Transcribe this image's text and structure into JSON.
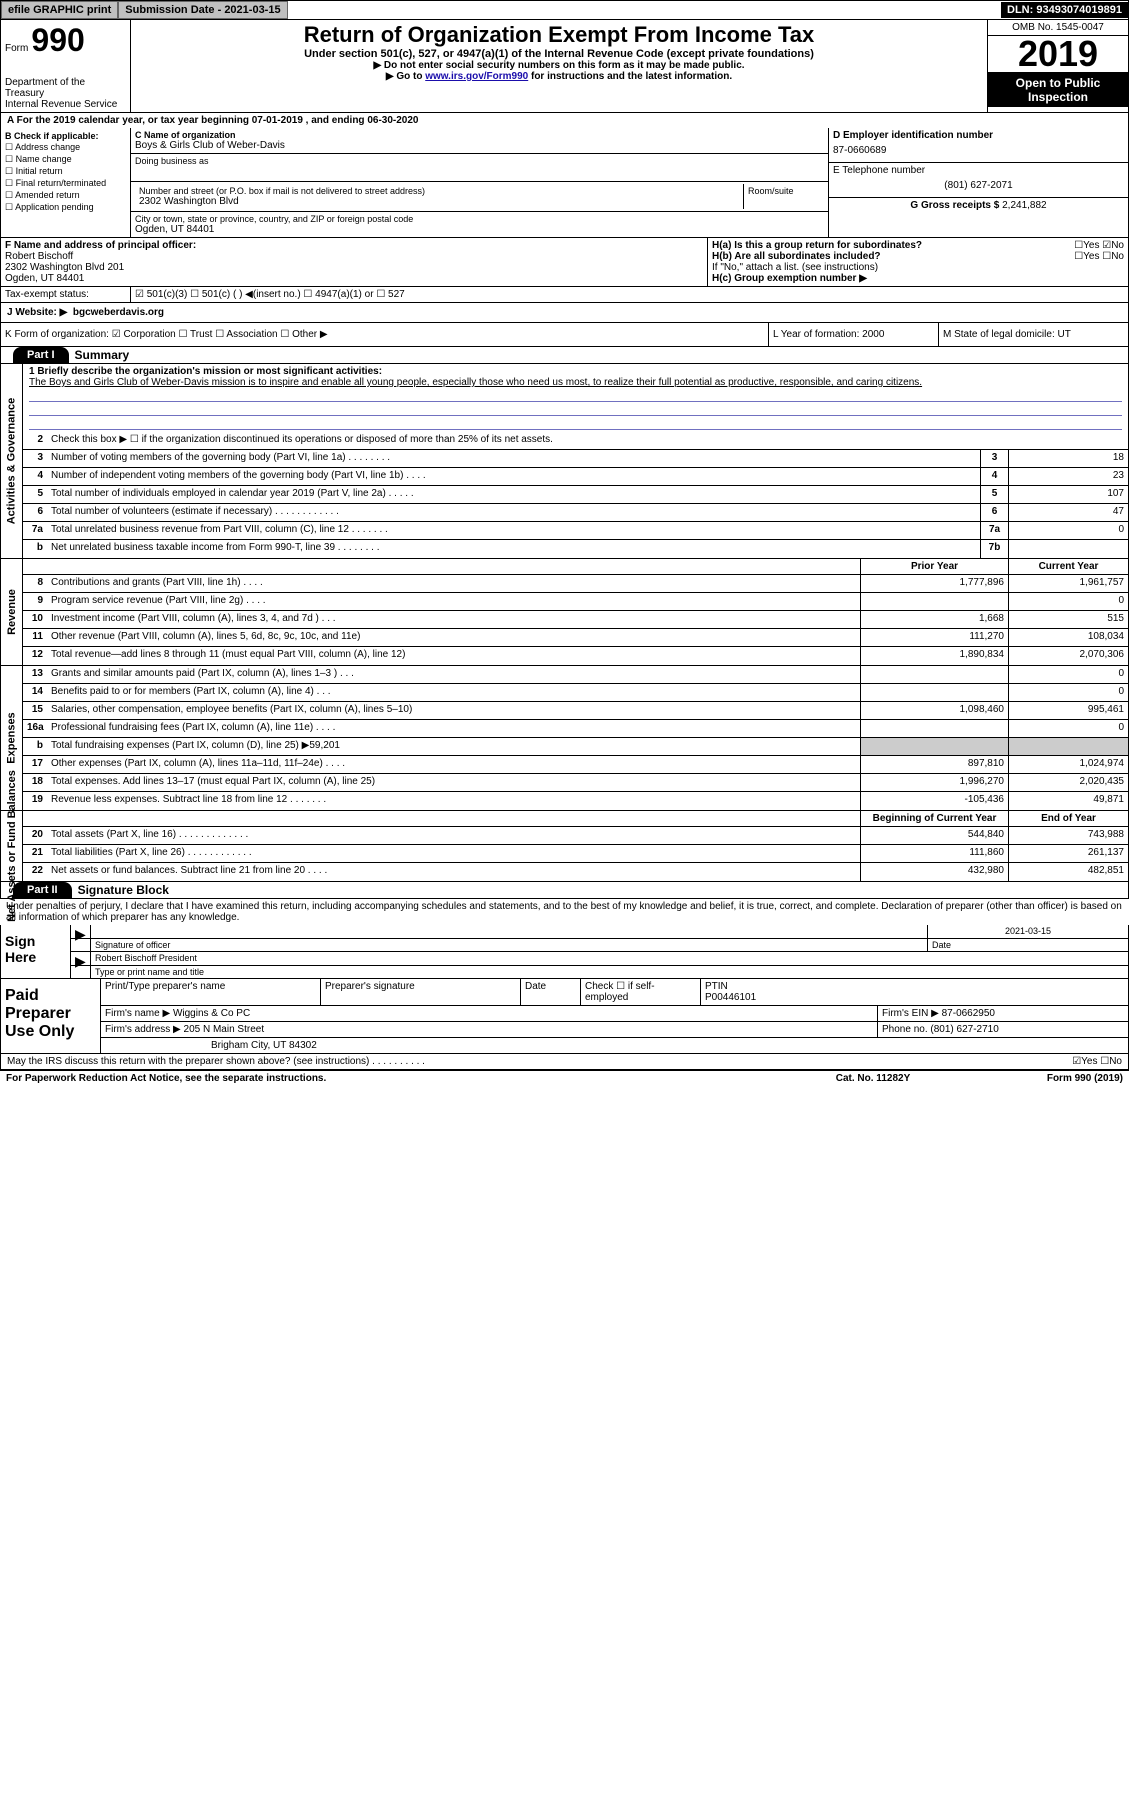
{
  "topbar": {
    "efile": "efile GRAPHIC print",
    "subdate_label": "Submission Date - 2021-03-15",
    "dln": "DLN: 93493074019891"
  },
  "header": {
    "form_word": "Form",
    "form_number": "990",
    "title": "Return of Organization Exempt From Income Tax",
    "subtitle": "Under section 501(c), 527, or 4947(a)(1) of the Internal Revenue Code (except private foundations)",
    "note1": "▶ Do not enter social security numbers on this form as it may be made public.",
    "note2_pre": "▶ Go to ",
    "note2_link": "www.irs.gov/Form990",
    "note2_post": " for instructions and the latest information.",
    "dept": "Department of the Treasury\nInternal Revenue Service",
    "omb": "OMB No. 1545-0047",
    "year": "2019",
    "inspect": "Open to Public Inspection"
  },
  "lineA": "A For the 2019 calendar year, or tax year beginning 07-01-2019   , and ending 06-30-2020",
  "sectionB": {
    "label": "B Check if applicable:",
    "opts": [
      "☐ Address change",
      "☐ Name change",
      "☐ Initial return",
      "☐ Final return/terminated",
      "☐ Amended return",
      "☐ Application pending"
    ]
  },
  "sectionC": {
    "name_label": "C Name of organization",
    "name": "Boys & Girls Club of Weber-Davis",
    "dba_label": "Doing business as",
    "street_label": "Number and street (or P.O. box if mail is not delivered to street address)",
    "room_label": "Room/suite",
    "street": "2302 Washington Blvd",
    "city_label": "City or town, state or province, country, and ZIP or foreign postal code",
    "city": "Ogden, UT  84401"
  },
  "sectionD": {
    "label": "D Employer identification number",
    "ein": "87-0660689",
    "tel_label": "E Telephone number",
    "tel": "(801) 627-2071",
    "gross_label": "G Gross receipts $ ",
    "gross": "2,241,882"
  },
  "sectionF": {
    "label": "F  Name and address of principal officer:",
    "name": "Robert Bischoff",
    "addr1": "2302 Washington Blvd 201",
    "addr2": "Ogden, UT  84401"
  },
  "sectionH": {
    "a": "H(a)  Is this a group return for subordinates?",
    "a_ans": "☐Yes ☑No",
    "b": "H(b)  Are all subordinates included?",
    "b_ans": "☐Yes ☐No",
    "b_note": "If \"No,\" attach a list. (see instructions)",
    "c": "H(c)  Group exemption number ▶"
  },
  "taxStatus": {
    "label": "Tax-exempt status:",
    "opts": "☑ 501(c)(3)   ☐ 501(c) (  ) ◀(insert no.)   ☐ 4947(a)(1) or  ☐ 527"
  },
  "website": {
    "label": "J    Website: ▶",
    "value": "bgcweberdavis.org"
  },
  "klm": {
    "k": "K Form of organization:  ☑ Corporation  ☐ Trust  ☐ Association  ☐ Other ▶",
    "l": "L Year of formation: 2000",
    "m": "M State of legal domicile: UT"
  },
  "part1": {
    "header": "Part I",
    "title": "Summary"
  },
  "activities": {
    "line1_label": "1  Briefly describe the organization's mission or most significant activities:",
    "line1_text": "The Boys and Girls Club of Weber-Davis mission is to inspire and enable all young people, especially those who need us most, to realize their full potential as productive, responsible, and caring citizens.",
    "line2": "Check this box ▶ ☐ if the organization discontinued its operations or disposed of more than 25% of its net assets.",
    "rows": [
      {
        "n": "3",
        "t": "Number of voting members of the governing body (Part VI, line 1a)  .   .   .   .   .   .   .   .",
        "b": "3",
        "v": "18"
      },
      {
        "n": "4",
        "t": "Number of independent voting members of the governing body (Part VI, line 1b)  .   .   .   .",
        "b": "4",
        "v": "23"
      },
      {
        "n": "5",
        "t": "Total number of individuals employed in calendar year 2019 (Part V, line 2a)  .   .   .   .   .",
        "b": "5",
        "v": "107"
      },
      {
        "n": "6",
        "t": "Total number of volunteers (estimate if necessary)   .   .   .   .   .   .   .   .   .   .   .   .",
        "b": "6",
        "v": "47"
      },
      {
        "n": "7a",
        "t": "Total unrelated business revenue from Part VIII, column (C), line 12  .   .   .   .   .   .   .",
        "b": "7a",
        "v": "0"
      },
      {
        "n": "b",
        "t": "Net unrelated business taxable income from Form 990-T, line 39   .   .   .   .   .   .   .   .",
        "b": "7b",
        "v": ""
      }
    ]
  },
  "revenue": {
    "header_py": "Prior Year",
    "header_cy": "Current Year",
    "rows": [
      {
        "n": "8",
        "t": "Contributions and grants (Part VIII, line 1h)   .   .   .   .",
        "py": "1,777,896",
        "cy": "1,961,757"
      },
      {
        "n": "9",
        "t": "Program service revenue (Part VIII, line 2g)   .   .   .   .",
        "py": "",
        "cy": "0"
      },
      {
        "n": "10",
        "t": "Investment income (Part VIII, column (A), lines 3, 4, and 7d )   .   .   .",
        "py": "1,668",
        "cy": "515"
      },
      {
        "n": "11",
        "t": "Other revenue (Part VIII, column (A), lines 5, 6d, 8c, 9c, 10c, and 11e)",
        "py": "111,270",
        "cy": "108,034"
      },
      {
        "n": "12",
        "t": "Total revenue—add lines 8 through 11 (must equal Part VIII, column (A), line 12)",
        "py": "1,890,834",
        "cy": "2,070,306"
      }
    ]
  },
  "expenses": {
    "rows": [
      {
        "n": "13",
        "t": "Grants and similar amounts paid (Part IX, column (A), lines 1–3 )  .   .   .",
        "py": "",
        "cy": "0"
      },
      {
        "n": "14",
        "t": "Benefits paid to or for members (Part IX, column (A), line 4)  .   .   .",
        "py": "",
        "cy": "0"
      },
      {
        "n": "15",
        "t": "Salaries, other compensation, employee benefits (Part IX, column (A), lines 5–10)",
        "py": "1,098,460",
        "cy": "995,461"
      },
      {
        "n": "16a",
        "t": "Professional fundraising fees (Part IX, column (A), line 11e)  .   .   .   .",
        "py": "",
        "cy": "0"
      },
      {
        "n": "b",
        "t": "Total fundraising expenses (Part IX, column (D), line 25) ▶59,201",
        "py": "SHADED",
        "cy": "SHADED"
      },
      {
        "n": "17",
        "t": "Other expenses (Part IX, column (A), lines 11a–11d, 11f–24e)  .   .   .   .",
        "py": "897,810",
        "cy": "1,024,974"
      },
      {
        "n": "18",
        "t": "Total expenses. Add lines 13–17 (must equal Part IX, column (A), line 25)",
        "py": "1,996,270",
        "cy": "2,020,435"
      },
      {
        "n": "19",
        "t": "Revenue less expenses. Subtract line 18 from line 12  .   .   .   .   .   .   .",
        "py": "-105,436",
        "cy": "49,871"
      }
    ]
  },
  "netassets": {
    "header_py": "Beginning of Current Year",
    "header_cy": "End of Year",
    "rows": [
      {
        "n": "20",
        "t": "Total assets (Part X, line 16)  .   .   .   .   .   .   .   .   .   .   .   .   .",
        "py": "544,840",
        "cy": "743,988"
      },
      {
        "n": "21",
        "t": "Total liabilities (Part X, line 26)  .   .   .   .   .   .   .   .   .   .   .   .",
        "py": "111,860",
        "cy": "261,137"
      },
      {
        "n": "22",
        "t": "Net assets or fund balances. Subtract line 21 from line 20  .   .   .   .",
        "py": "432,980",
        "cy": "482,851"
      }
    ]
  },
  "sideLabels": {
    "activities": "Activities & Governance",
    "revenue": "Revenue",
    "expenses": "Expenses",
    "netassets": "Net Assets or Fund Balances"
  },
  "part2": {
    "header": "Part II",
    "title": "Signature Block"
  },
  "sigDecl": "Under penalties of perjury, I declare that I have examined this return, including accompanying schedules and statements, and to the best of my knowledge and belief, it is true, correct, and complete. Declaration of preparer (other than officer) is based on all information of which preparer has any knowledge.",
  "sign": {
    "label": "Sign Here",
    "sig_officer": "Signature of officer",
    "date_label": "Date",
    "date": "2021-03-15",
    "name": "Robert Bischoff  President",
    "name_label": "Type or print name and title"
  },
  "prep": {
    "label": "Paid Preparer Use Only",
    "h1": "Print/Type preparer's name",
    "h2": "Preparer's signature",
    "h3": "Date",
    "h4": "Check ☐ if self-employed",
    "h5": "PTIN",
    "ptin": "P00446101",
    "firm_label": "Firm's name    ▶",
    "firm": "Wiggins & Co PC",
    "ein_label": "Firm's EIN ▶",
    "ein": "87-0662950",
    "addr_label": "Firm's address ▶",
    "addr1": "205 N Main Street",
    "addr2": "Brigham City, UT  84302",
    "phone_label": "Phone no.",
    "phone": "(801) 627-2710"
  },
  "discuss": "May the IRS discuss this return with the preparer shown above? (see instructions)   .   .   .   .   .   .   .   .   .   .",
  "discuss_ans": "☑Yes ☐No",
  "footer": {
    "left": "For Paperwork Reduction Act Notice, see the separate instructions.",
    "mid": "Cat. No. 11282Y",
    "right": "Form 990 (2019)"
  }
}
